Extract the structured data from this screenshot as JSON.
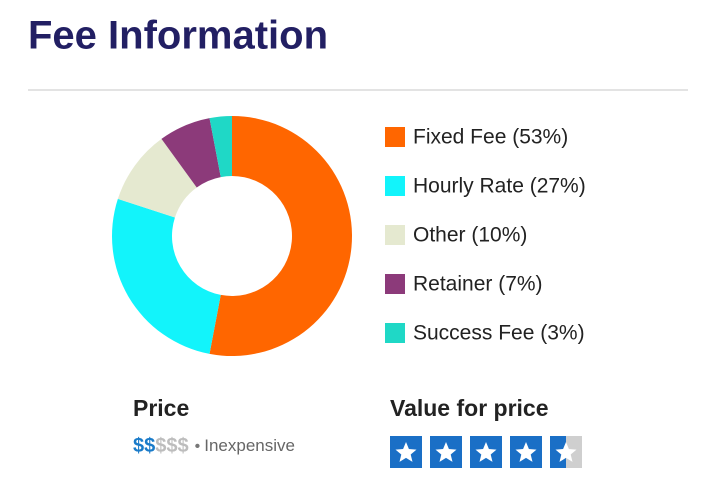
{
  "title": "Fee Information",
  "chart_data": {
    "type": "donut",
    "categories": [
      "Fixed Fee (53%)",
      "Hourly Rate (27%)",
      "Other (10%)",
      "Retainer (7%)",
      "Success Fee (3%)"
    ],
    "values": [
      53,
      27,
      10,
      7,
      3
    ],
    "colors": [
      "#ff6600",
      "#12f4fb",
      "#e5e9d0",
      "#8c3a7a",
      "#1fd8c6"
    ]
  },
  "price": {
    "label": "Price",
    "filled": "$$",
    "unfilled": "$$$",
    "description": "Inexpensive"
  },
  "rating": {
    "label": "Value for price",
    "value": 4.5,
    "max": 5
  }
}
